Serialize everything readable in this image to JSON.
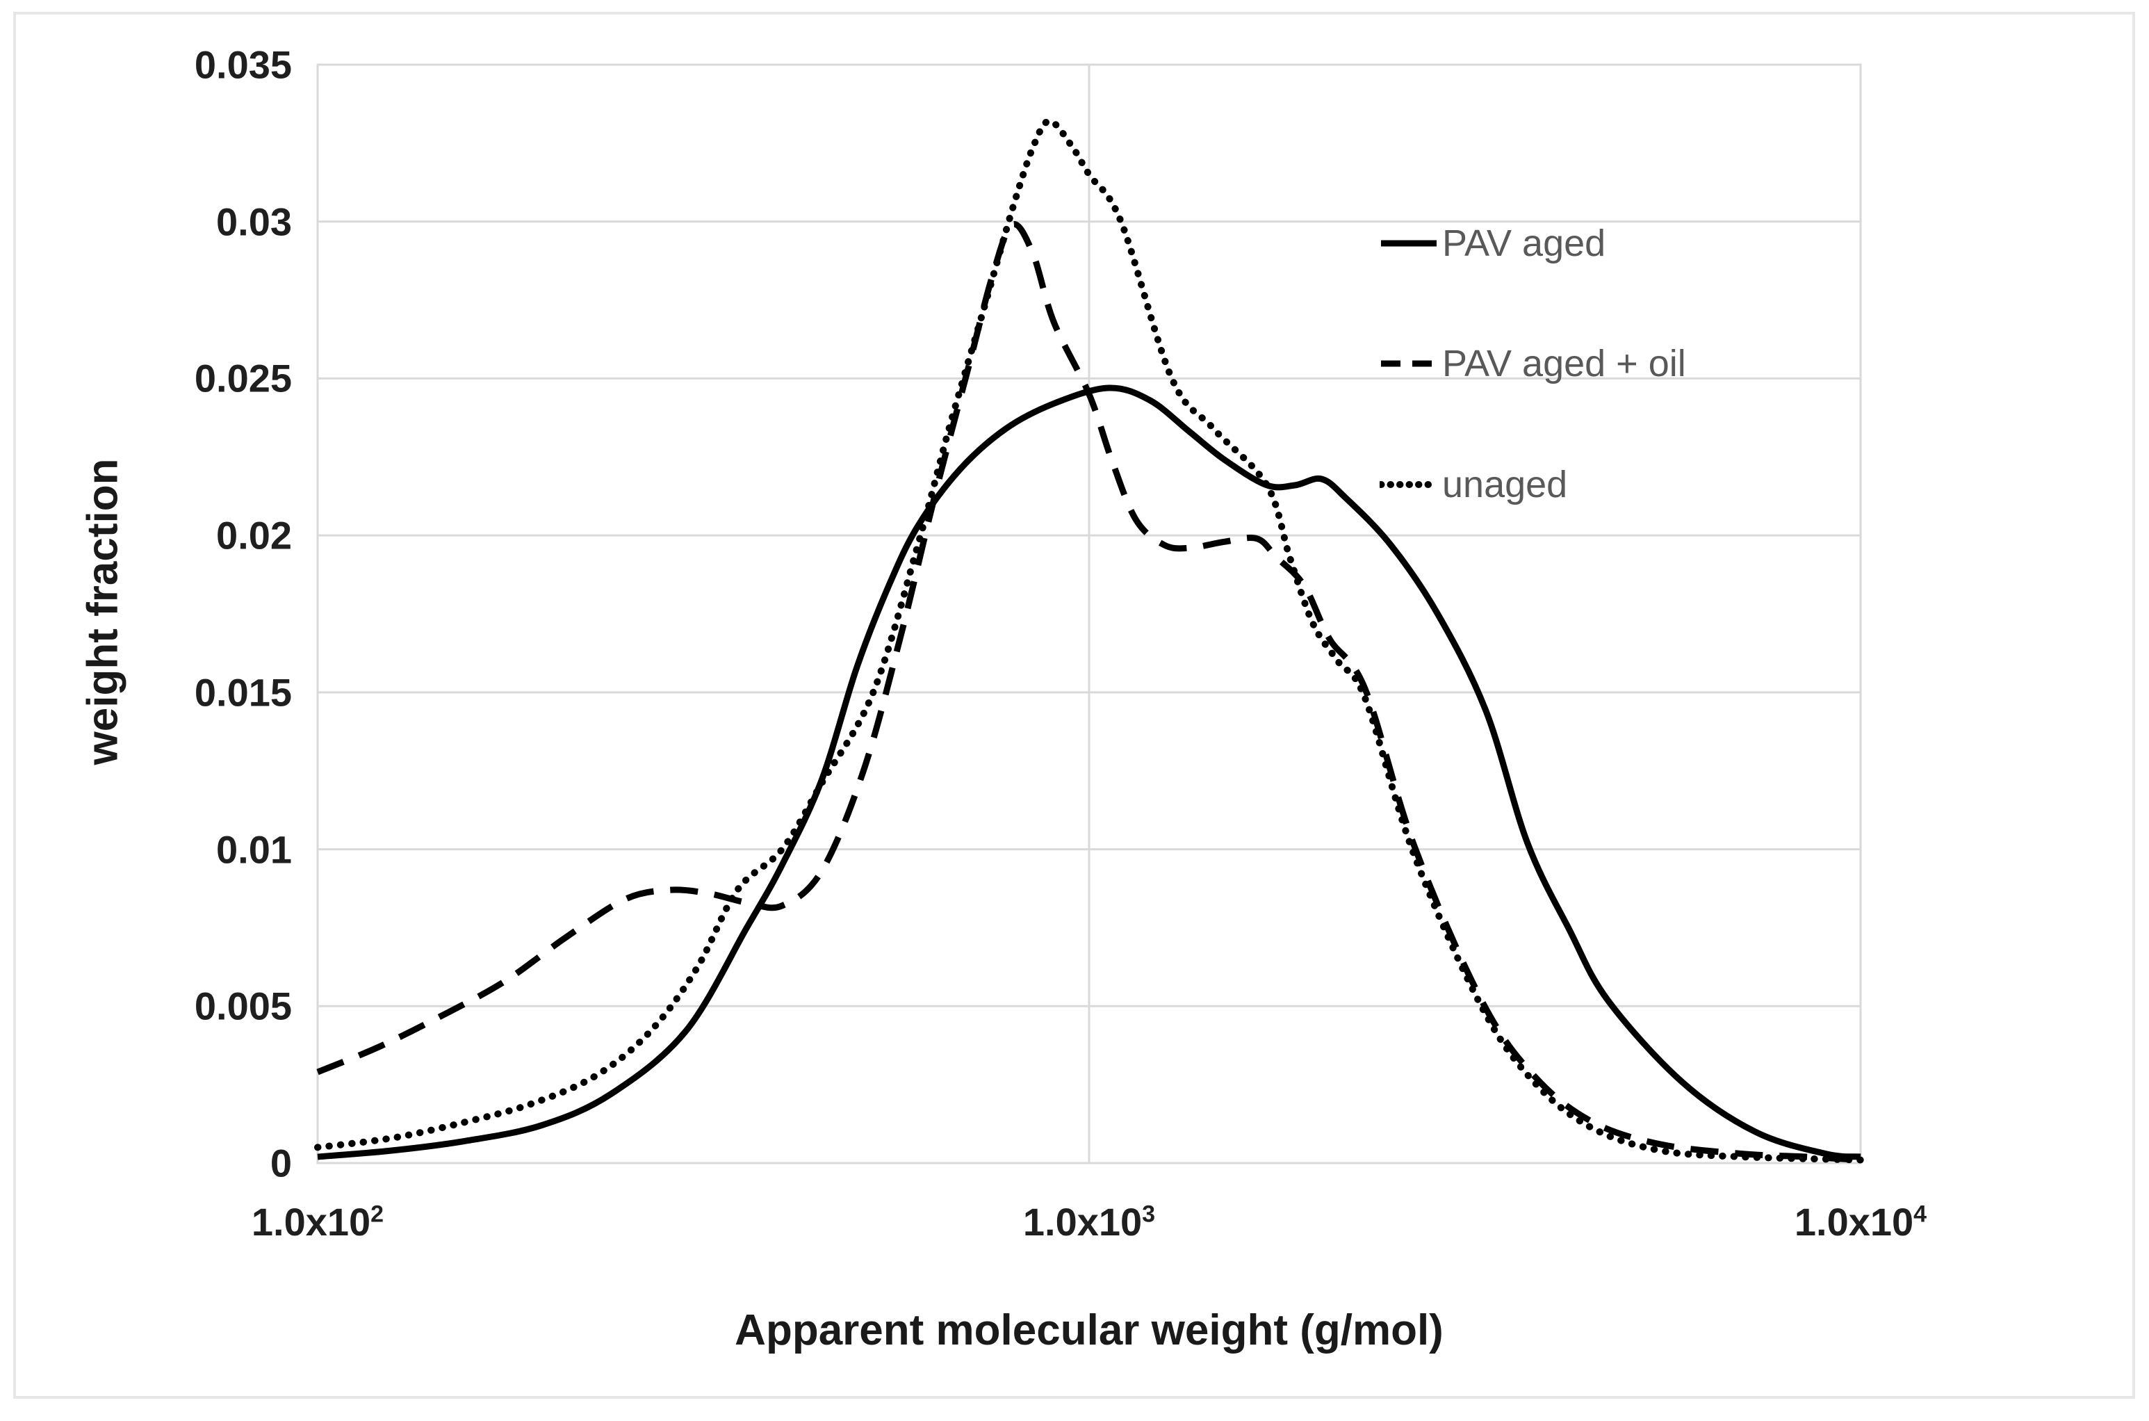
{
  "chart_data": {
    "type": "line",
    "title": "",
    "xlabel": "Apparent molecular weight (g/mol)",
    "ylabel": "weight fraction",
    "x_scale": "log",
    "xlim": [
      100,
      10000
    ],
    "ylim": [
      0,
      0.035
    ],
    "grid": "on",
    "legend_position": "top-right-inside",
    "x_ticks": [
      {
        "base": "1.0x10",
        "exp": "2",
        "value": 100
      },
      {
        "base": "1.0x10",
        "exp": "3",
        "value": 1000
      },
      {
        "base": "1.0x10",
        "exp": "4",
        "value": 10000
      }
    ],
    "y_ticks": [
      {
        "label": "0",
        "value": 0
      },
      {
        "label": "0.005",
        "value": 0.005
      },
      {
        "label": "0.01",
        "value": 0.01
      },
      {
        "label": "0.015",
        "value": 0.015
      },
      {
        "label": "0.02",
        "value": 0.02
      },
      {
        "label": "0.025",
        "value": 0.025
      },
      {
        "label": "0.03",
        "value": 0.03
      },
      {
        "label": "0.035",
        "value": 0.035
      }
    ],
    "series": [
      {
        "name": "PAV aged",
        "style": "solid",
        "color": "#000000",
        "points": [
          [
            100,
            0.0002
          ],
          [
            125,
            0.0004
          ],
          [
            155,
            0.0007
          ],
          [
            195,
            0.0012
          ],
          [
            240,
            0.0022
          ],
          [
            300,
            0.0042
          ],
          [
            360,
            0.0075
          ],
          [
            400,
            0.0095
          ],
          [
            450,
            0.0122
          ],
          [
            500,
            0.0158
          ],
          [
            550,
            0.0184
          ],
          [
            600,
            0.0203
          ],
          [
            680,
            0.0221
          ],
          [
            780,
            0.0234
          ],
          [
            900,
            0.0242
          ],
          [
            1060,
            0.0247
          ],
          [
            1200,
            0.0243
          ],
          [
            1350,
            0.0233
          ],
          [
            1500,
            0.0224
          ],
          [
            1700,
            0.0216
          ],
          [
            1850,
            0.0216
          ],
          [
            2000,
            0.0218
          ],
          [
            2150,
            0.0212
          ],
          [
            2460,
            0.0197
          ],
          [
            2830,
            0.0175
          ],
          [
            3270,
            0.0144
          ],
          [
            3700,
            0.0102
          ],
          [
            4200,
            0.0074
          ],
          [
            4700,
            0.0052
          ],
          [
            5860,
            0.0026
          ],
          [
            7300,
            0.001
          ],
          [
            9000,
            0.0003
          ],
          [
            10000,
            0.0002
          ]
        ]
      },
      {
        "name": "PAV aged + oil",
        "style": "dashed",
        "color": "#000000",
        "points": [
          [
            100,
            0.0029
          ],
          [
            120,
            0.0037
          ],
          [
            145,
            0.0047
          ],
          [
            175,
            0.0058
          ],
          [
            210,
            0.0072
          ],
          [
            250,
            0.0084
          ],
          [
            285,
            0.0087
          ],
          [
            320,
            0.0086
          ],
          [
            360,
            0.0083
          ],
          [
            400,
            0.0082
          ],
          [
            450,
            0.0093
          ],
          [
            510,
            0.0125
          ],
          [
            570,
            0.0168
          ],
          [
            630,
            0.0212
          ],
          [
            700,
            0.0255
          ],
          [
            750,
            0.0283
          ],
          [
            795,
            0.0299
          ],
          [
            845,
            0.029
          ],
          [
            900,
            0.0268
          ],
          [
            1000,
            0.0245
          ],
          [
            1070,
            0.0224
          ],
          [
            1150,
            0.0205
          ],
          [
            1250,
            0.0197
          ],
          [
            1350,
            0.0196
          ],
          [
            1500,
            0.0198
          ],
          [
            1650,
            0.0199
          ],
          [
            1750,
            0.0193
          ],
          [
            1900,
            0.0184
          ],
          [
            2050,
            0.0167
          ],
          [
            2280,
            0.0151
          ],
          [
            2640,
            0.0101
          ],
          [
            3240,
            0.0051
          ],
          [
            3800,
            0.0027
          ],
          [
            4500,
            0.0013
          ],
          [
            5500,
            0.0006
          ],
          [
            7000,
            0.0003
          ],
          [
            8500,
            0.0002
          ],
          [
            10000,
            0.0001
          ]
        ]
      },
      {
        "name": "unaged",
        "style": "dotted",
        "color": "#000000",
        "points": [
          [
            100,
            0.0005
          ],
          [
            125,
            0.0008
          ],
          [
            155,
            0.0013
          ],
          [
            190,
            0.0019
          ],
          [
            230,
            0.0028
          ],
          [
            270,
            0.0042
          ],
          [
            310,
            0.0062
          ],
          [
            350,
            0.0087
          ],
          [
            400,
            0.01
          ],
          [
            450,
            0.0121
          ],
          [
            525,
            0.015
          ],
          [
            600,
            0.0197
          ],
          [
            660,
            0.0235
          ],
          [
            730,
            0.0272
          ],
          [
            800,
            0.0306
          ],
          [
            850,
            0.0325
          ],
          [
            890,
            0.0332
          ],
          [
            950,
            0.0324
          ],
          [
            1000,
            0.0315
          ],
          [
            1100,
            0.03
          ],
          [
            1280,
            0.025
          ],
          [
            1450,
            0.0234
          ],
          [
            1700,
            0.0216
          ],
          [
            1820,
            0.0193
          ],
          [
            1950,
            0.0172
          ],
          [
            2100,
            0.016
          ],
          [
            2280,
            0.0148
          ],
          [
            2640,
            0.0098
          ],
          [
            3240,
            0.0049
          ],
          [
            3800,
            0.0025
          ],
          [
            4500,
            0.0011
          ],
          [
            5500,
            0.0004
          ],
          [
            7000,
            0.0002
          ],
          [
            10000,
            0.0001
          ]
        ]
      }
    ]
  },
  "colors": {
    "background": "#ffffff",
    "grid": "#d9d9d9",
    "frame": "#d9d9d9",
    "outer_border": "#e7e7e7",
    "curve": "#000000",
    "axis_text": "#1a1a1a",
    "legend_text": "#595959"
  }
}
